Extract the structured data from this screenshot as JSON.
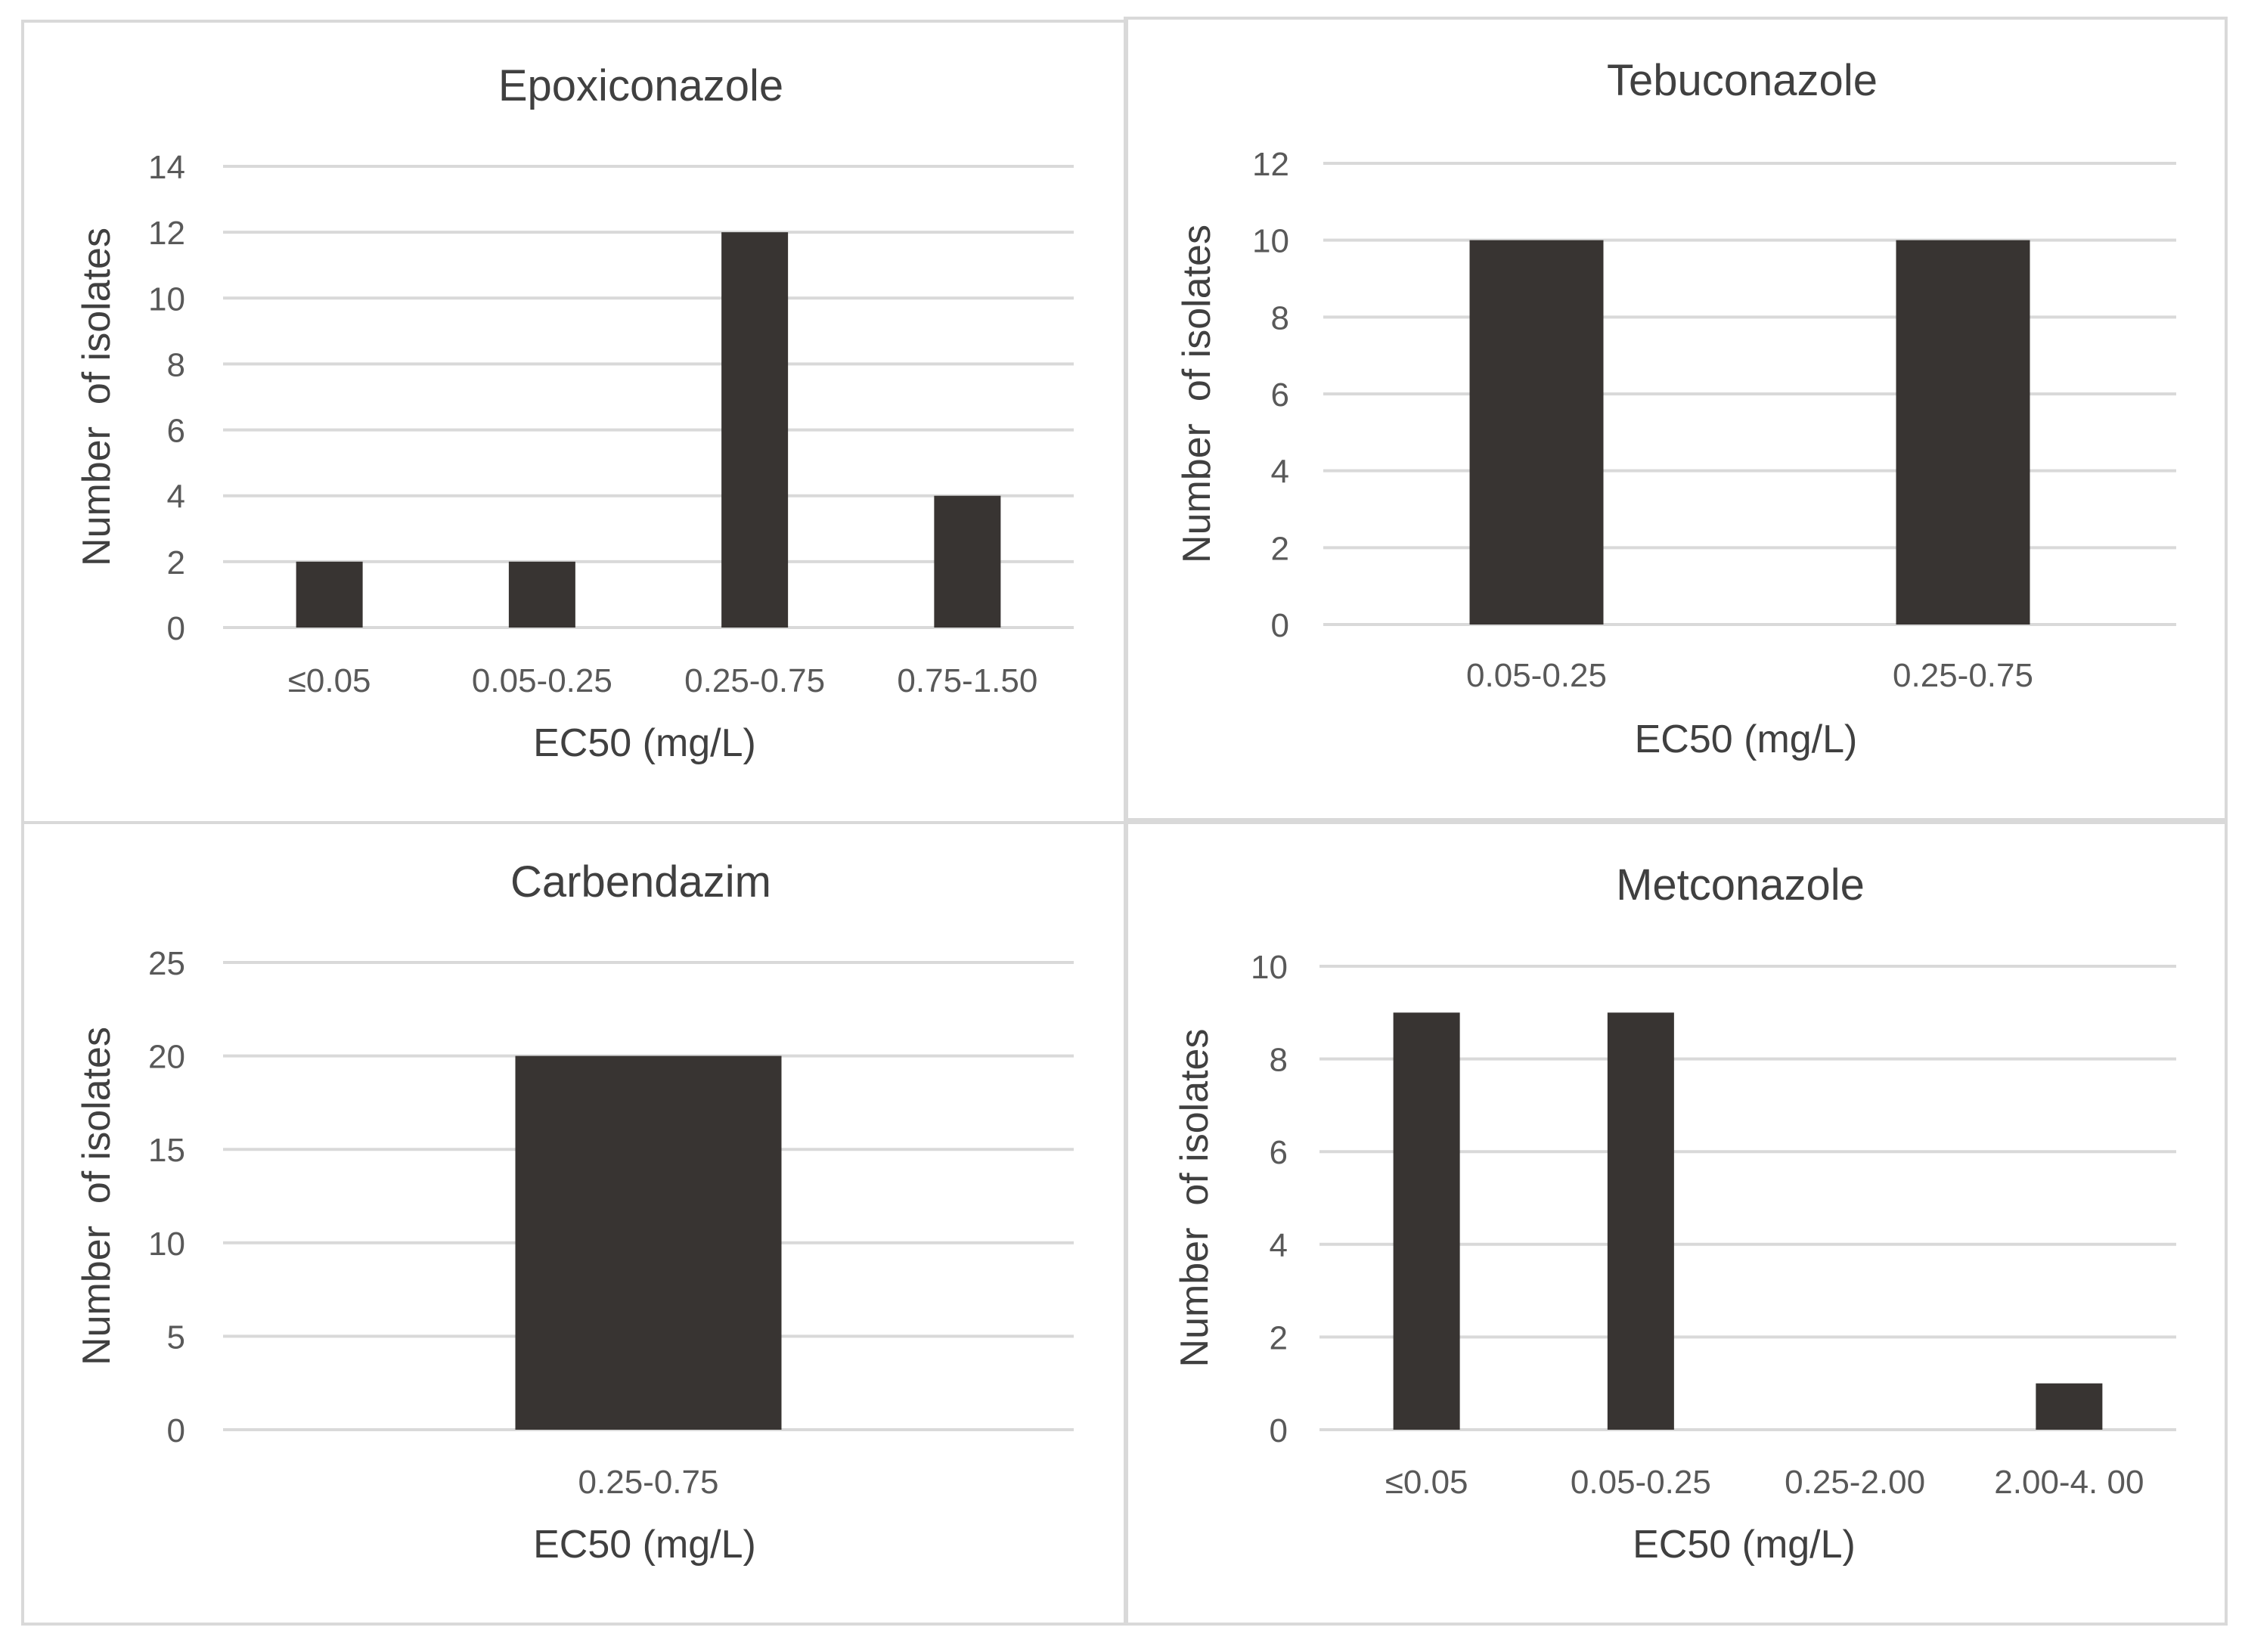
{
  "chart_data": [
    {
      "type": "bar",
      "title": "Epoxiconazole",
      "categories": [
        "≤0.05",
        "0.05-0.25",
        "0.25-0.75",
        "0.75-1.50"
      ],
      "values": [
        2,
        2,
        12,
        4
      ],
      "xlabel": "EC50 (mg/L)",
      "ylabel": "Number  of isolates",
      "ylim": [
        0,
        14
      ],
      "yticks": [
        0,
        2,
        4,
        6,
        8,
        10,
        12,
        14
      ],
      "grid": true
    },
    {
      "type": "bar",
      "title": "Tebuconazole",
      "categories": [
        "0.05-0.25",
        "0.25-0.75"
      ],
      "values": [
        10,
        10
      ],
      "xlabel": "EC50 (mg/L)",
      "ylabel": "Number  of isolates",
      "ylim": [
        0,
        12
      ],
      "yticks": [
        0,
        2,
        4,
        6,
        8,
        10,
        12
      ],
      "grid": true
    },
    {
      "type": "bar",
      "title": "Carbendazim",
      "categories": [
        "0.25-0.75"
      ],
      "values": [
        20
      ],
      "xlabel": "EC50 (mg/L)",
      "ylabel": "Number  of isolates",
      "ylim": [
        0,
        25
      ],
      "yticks": [
        0,
        5,
        10,
        15,
        20,
        25
      ],
      "grid": true
    },
    {
      "type": "bar",
      "title": "Metconazole",
      "categories": [
        "≤0.05",
        "0.05-0.25",
        "0.25-2.00",
        "2.00-4. 00"
      ],
      "values": [
        9,
        9,
        0,
        1
      ],
      "xlabel": "EC50 (mg/L)",
      "ylabel": "Number  of isolates",
      "ylim": [
        0,
        10
      ],
      "yticks": [
        0,
        2,
        4,
        6,
        8,
        10
      ],
      "grid": true
    }
  ],
  "colors": {
    "bar": "#383432",
    "grid": "#d9d9d9",
    "border": "#d9d9d9",
    "tick_text": "#595959",
    "title_text": "#404040",
    "label_text": "#404040"
  }
}
